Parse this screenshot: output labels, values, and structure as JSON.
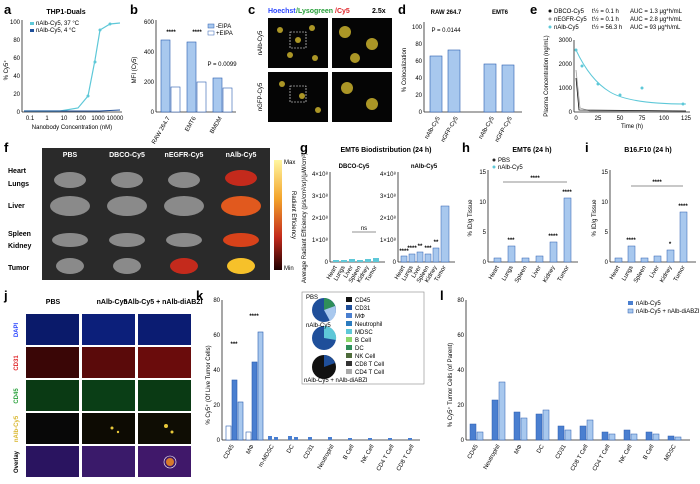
{
  "colors": {
    "teal": "#5ec8d8",
    "dark_blue": "#1f4f9a",
    "mid_blue": "#4a7fd0",
    "light_blue": "#a8c8ee",
    "green": "#2f8f5a",
    "black": "#111111",
    "gray": "#9a9a9a"
  },
  "panels": {
    "a": {
      "letter": "a",
      "title": "THP1-Duals",
      "ylabel": "% Cy5⁺",
      "xlabel": "Nanobody Concentration (nM)",
      "legend": [
        "nAlb-Cy5, 37 °C",
        "nAlb-Cy5, 4 °C"
      ],
      "yticks": [
        "0",
        "20",
        "40",
        "60",
        "80",
        "100"
      ],
      "xticks": [
        "0.1",
        "1",
        "10",
        "100",
        "1000",
        "10000"
      ]
    },
    "b": {
      "letter": "b",
      "ylabel": "MFI (Cy5)",
      "yticks": [
        "0",
        "200",
        "400",
        "600"
      ],
      "legend": [
        "-EIPA",
        "+EIPA"
      ],
      "categories": [
        "RAW 264.7",
        "EMT6",
        "BMDM"
      ],
      "sig": [
        "****",
        "****",
        "P = 0.0099"
      ]
    },
    "c": {
      "letter": "c",
      "header_hoechst": "Hoechst",
      "header_lyso": "/Lysogreen",
      "header_cy5": "/Cy5",
      "zoom": "2.5x",
      "rows": [
        "nAlb-Cy5",
        "nGFP-Cy5"
      ]
    },
    "d": {
      "letter": "d",
      "ylabel": "% Colocalization",
      "yticks": [
        "0",
        "20",
        "40",
        "60",
        "80",
        "100"
      ],
      "groups": [
        "RAW 264.7",
        "EMT6"
      ],
      "pvalue": "P = 0.0144",
      "categories": [
        "nAlb-Cy5",
        "nGFP-Cy5",
        "nAlb-Cy5",
        "nGFP-Cy5"
      ]
    },
    "e": {
      "letter": "e",
      "ylabel": "Plasma Concentration (ng/mL)",
      "xlabel": "Time (h)",
      "legend": [
        {
          "name": "DBCO-Cy5",
          "t": "t½ = 0.1 h",
          "auc": "AUC = 1.3 μg*h/mL"
        },
        {
          "name": "nEGFR-Cy5",
          "t": "t½ = 0.1 h",
          "auc": "AUC = 2.8 μg*h/mL"
        },
        {
          "name": "nAlb-Cy5",
          "t": "t½ = 56.3 h",
          "auc": "AUC = 93 μg*h/mL"
        }
      ],
      "yticks": [
        "0",
        "1000",
        "2000",
        "3000"
      ],
      "xticks": [
        "0",
        "25",
        "50",
        "75",
        "100",
        "125"
      ]
    },
    "f": {
      "letter": "f",
      "columns": [
        "PBS",
        "DBCO-Cy5",
        "nEGFR-Cy5",
        "nAlb-Cy5"
      ],
      "rows": [
        "Heart",
        "Lungs",
        "Liver",
        "Spleen",
        "Kidney",
        "Tumor"
      ],
      "scale_max": "Max",
      "scale_min": "Min",
      "scale_label": "Radiant Efficiency"
    },
    "g": {
      "letter": "g",
      "title": "EMT6 Biodistribution (24 h)",
      "ylabel": "Average Radiant Efficiency (p/s/cm²/sr)/(μW/cm²)",
      "sub_left": "DBCO-Cy5",
      "sub_right": "nAlb-Cy5",
      "ns": "ns",
      "yticks": [
        "0",
        "1×10⁸",
        "2×10⁸",
        "3×10⁸",
        "4×10⁸"
      ],
      "categories": [
        "Heart",
        "Lungs",
        "Liver",
        "Spleen",
        "Kidney",
        "Tumor"
      ],
      "sig_right": [
        "****",
        "****",
        "**",
        "***",
        "**",
        ""
      ]
    },
    "h": {
      "letter": "h",
      "title": "EMT6 (24 h)",
      "ylabel": "% ID/g Tissue",
      "legend": [
        "PBS",
        "nAlb-Cy5"
      ],
      "yticks": [
        "0",
        "5",
        "10",
        "15"
      ],
      "categories": [
        "Heart",
        "Lungs",
        "Spleen",
        "Liver",
        "Kidney",
        "Tumor"
      ],
      "sig": [
        "",
        "***",
        "",
        "",
        "****",
        "****"
      ],
      "sig_bracket": "****"
    },
    "i": {
      "letter": "i",
      "title": "B16.F10 (24 h)",
      "ylabel": "% ID/g Tissue",
      "yticks": [
        "0",
        "5",
        "10",
        "15"
      ],
      "categories": [
        "Heart",
        "Lungs",
        "Spleen",
        "Liver",
        "Kidney",
        "Tumor"
      ],
      "sig": [
        "",
        "****",
        "",
        "",
        "*",
        "****"
      ],
      "sig_bracket": "****"
    },
    "j": {
      "letter": "j",
      "columns": [
        "PBS",
        "nAlb-Cy5",
        "nAlb-Cy5 + nAlb-diABZI"
      ],
      "rows": [
        "DAPI",
        "CD31",
        "CD45",
        "nAlb-Cy5",
        "Overlay"
      ]
    },
    "k": {
      "letter": "k",
      "ylabel": "% Cy5⁺ (Of Live Tumor Cells)",
      "yticks": [
        "0",
        "20",
        "40",
        "60",
        "80"
      ],
      "categories": [
        "CD45",
        "MΦ",
        "m-MDSC",
        "DC",
        "CD31",
        "Neutrophil",
        "B Cell",
        "NK Cell",
        "CD4 T Cell",
        "CD8 T Cell"
      ],
      "sig": [
        "***",
        "****"
      ],
      "pie_labels": [
        "PBS",
        "nAlb-Cy5",
        "nAlb-Cy5 + nAlb-diABZI"
      ],
      "pie_legend": [
        "CD45",
        "CD31",
        "MΦ",
        "Neutrophil",
        "MDSC",
        "B Cell",
        "DC",
        "NK Cell",
        "CD8 T Cell",
        "CD4 T Cell"
      ]
    },
    "l": {
      "letter": "l",
      "ylabel": "% Cy5⁺ Tumor Cells (of Parent)",
      "yticks": [
        "0",
        "20",
        "40",
        "60",
        "80"
      ],
      "legend": [
        "nAlb-Cy5",
        "nAlb-Cy5 + nAlb-diABZI"
      ],
      "categories": [
        "CD45",
        "Neutrophil",
        "MΦ",
        "DC",
        "CD31",
        "CD8 T Cell",
        "CD4 T Cell",
        "NK Cell",
        "B Cell",
        "MDSC"
      ]
    }
  }
}
